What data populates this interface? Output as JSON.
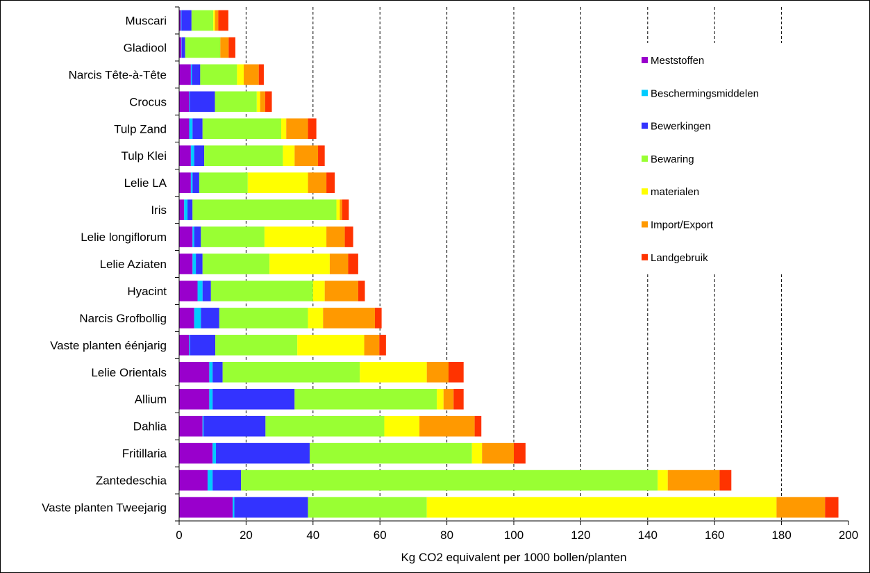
{
  "chart_data": {
    "type": "bar",
    "orientation": "horizontal",
    "stacked": true,
    "title": "",
    "xlabel": "Kg CO2 equivalent per 1000 bollen/planten",
    "ylabel": "",
    "xlim": [
      0,
      200
    ],
    "xticks": [
      0,
      20,
      40,
      60,
      80,
      100,
      120,
      140,
      160,
      180,
      200
    ],
    "grid": "vertical dashed",
    "legend_position": "top-right",
    "categories": [
      "Muscari",
      "Gladiool",
      "Narcis Tête-à-Tête",
      "Crocus",
      "Tulp Zand",
      "Tulp Klei",
      "Lelie LA",
      "Iris",
      "Lelie longiflorum",
      "Lelie Aziaten",
      "Hyacint",
      "Narcis Grofbollig",
      "Vaste planten éénjarig",
      "Lelie Orientals",
      "Allium",
      "Dahlia",
      "Fritillaria",
      "Zantedeschia",
      "Vaste planten Tweejarig"
    ],
    "series": [
      {
        "name": "Meststoffen",
        "color": "#9900cc",
        "values": [
          0.5,
          0.7,
          3.5,
          3.0,
          3.0,
          3.5,
          3.5,
          1.5,
          4.0,
          4.0,
          5.5,
          4.5,
          3.0,
          9.0,
          9.0,
          7.0,
          10.0,
          8.5,
          16.0
        ]
      },
      {
        "name": "Beschermingsmiddelen",
        "color": "#00ccff",
        "values": [
          0.2,
          0.1,
          0.3,
          0.2,
          1.0,
          1.0,
          0.5,
          1.0,
          0.5,
          1.0,
          1.5,
          2.0,
          0.3,
          1.0,
          1.0,
          0.3,
          1.0,
          1.5,
          0.5
        ]
      },
      {
        "name": "Bewerkingen",
        "color": "#3333ff",
        "values": [
          3.0,
          1.0,
          2.5,
          7.5,
          3.0,
          3.0,
          2.0,
          1.5,
          2.0,
          2.0,
          2.5,
          5.5,
          7.5,
          3.0,
          24.5,
          18.5,
          28.0,
          8.5,
          22.0
        ]
      },
      {
        "name": "Bewaring",
        "color": "#99ff33",
        "values": [
          6.5,
          10.5,
          11.0,
          12.5,
          23.5,
          23.5,
          14.5,
          43.0,
          19.0,
          20.0,
          30.5,
          26.5,
          24.5,
          41.0,
          42.5,
          35.5,
          48.5,
          124.5,
          35.5
        ]
      },
      {
        "name": "materialen",
        "color": "#ffff00",
        "values": [
          0.5,
          0,
          2.0,
          1.0,
          1.5,
          3.5,
          18.0,
          1.0,
          18.5,
          18.0,
          3.5,
          4.5,
          20.0,
          20.0,
          2.0,
          10.5,
          3.0,
          3.0,
          104.5
        ]
      },
      {
        "name": "Import/Export",
        "color": "#ff9900",
        "values": [
          1.0,
          2.5,
          4.5,
          1.5,
          6.5,
          7.0,
          5.5,
          0.7,
          5.5,
          5.5,
          10.0,
          15.5,
          4.5,
          6.5,
          3.0,
          16.5,
          9.5,
          15.5,
          14.5
        ]
      },
      {
        "name": "Landgebruik",
        "color": "#ff3300",
        "values": [
          3.0,
          2.0,
          1.5,
          2.0,
          2.5,
          2.0,
          2.5,
          2.0,
          2.5,
          3.0,
          2.0,
          2.0,
          2.0,
          4.5,
          3.0,
          2.0,
          3.5,
          3.5,
          4.0
        ]
      }
    ]
  }
}
